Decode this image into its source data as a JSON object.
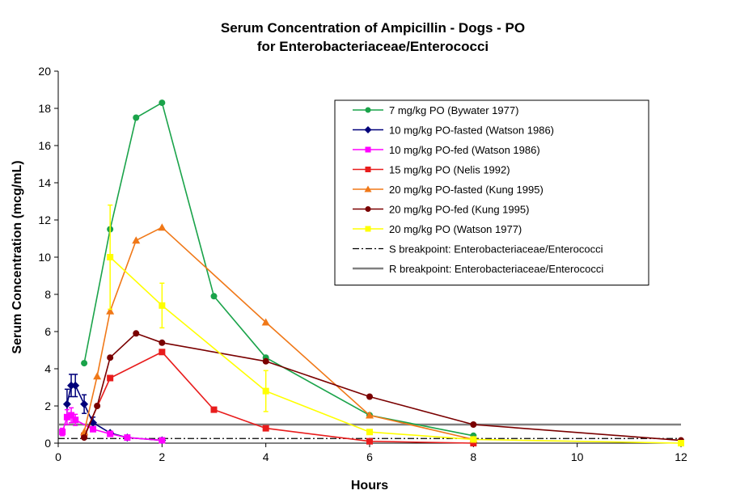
{
  "chart_data": {
    "type": "line",
    "title": [
      "Serum Concentration  of Ampicillin  - Dogs - PO",
      "for Enterobacteriaceae/Enterococci"
    ],
    "xlabel": "Hours",
    "ylabel": "Serum Concentration (mcg/mL)",
    "xlim": [
      0,
      12
    ],
    "ylim": [
      0,
      20
    ],
    "xticks": [
      0,
      2,
      4,
      6,
      8,
      10,
      12
    ],
    "yticks": [
      0,
      2,
      4,
      6,
      8,
      10,
      12,
      14,
      16,
      18,
      20
    ],
    "grid": false,
    "legend_position": "top-right",
    "series": [
      {
        "name": "7 mg/kg PO (Bywater 1977)",
        "color": "#1aa34a",
        "marker": "circle",
        "x": [
          0.5,
          1,
          1.5,
          2,
          3,
          4,
          6,
          8
        ],
        "y": [
          4.3,
          11.5,
          17.5,
          18.3,
          7.9,
          4.6,
          1.5,
          0.4
        ]
      },
      {
        "name": "10 mg/kg PO-fasted (Watson 1986)",
        "color": "#00007a",
        "marker": "diamond",
        "x": [
          0.17,
          0.25,
          0.33,
          0.5,
          0.67,
          1,
          1.33,
          2
        ],
        "y": [
          2.1,
          3.1,
          3.1,
          2.1,
          1.1,
          0.55,
          0.3,
          0.15
        ],
        "err": [
          0.8,
          0.6,
          0.6,
          0.5,
          0.3,
          0,
          0,
          0
        ]
      },
      {
        "name": "10 mg/kg PO-fed (Watson 1986)",
        "color": "#ff00ff",
        "marker": "square",
        "x": [
          0.08,
          0.17,
          0.25,
          0.33,
          0.67,
          1,
          1.33,
          2
        ],
        "y": [
          0.6,
          1.4,
          1.5,
          1.25,
          0.75,
          0.5,
          0.3,
          0.15
        ],
        "err": [
          0.2,
          0.4,
          0.4,
          0.3,
          0,
          0,
          0,
          0
        ]
      },
      {
        "name": "15 mg/kg PO (Nelis 1992)",
        "color": "#e81c1c",
        "marker": "square",
        "x": [
          0.5,
          1,
          2,
          3,
          4,
          6,
          8
        ],
        "y": [
          0.4,
          3.5,
          4.9,
          1.8,
          0.8,
          0.1,
          0.0
        ]
      },
      {
        "name": "20 mg/kg PO-fasted (Kung 1995)",
        "color": "#f07818",
        "marker": "triangle",
        "x": [
          0.5,
          0.75,
          1,
          1.5,
          2,
          4,
          6,
          8
        ],
        "y": [
          0.6,
          3.6,
          7.1,
          10.9,
          11.6,
          6.5,
          1.5,
          0.2
        ]
      },
      {
        "name": "20 mg/kg PO-fed (Kung 1995)",
        "color": "#7a0000",
        "marker": "circle",
        "x": [
          0.5,
          0.75,
          1,
          1.5,
          2,
          4,
          6,
          8,
          12
        ],
        "y": [
          0.3,
          2.0,
          4.6,
          5.9,
          5.4,
          4.4,
          2.5,
          1.0,
          0.15
        ]
      },
      {
        "name": "20 mg/kg PO (Watson 1977)",
        "color": "#ffff00",
        "marker": "square",
        "x": [
          1,
          2,
          4,
          6,
          8,
          12
        ],
        "y": [
          10.0,
          7.4,
          2.8,
          0.6,
          0.2,
          0.0
        ],
        "err": [
          2.8,
          1.2,
          1.1,
          0,
          0,
          0
        ]
      },
      {
        "name": "S breakpoint: Enterobacteriaceae/Enterococci",
        "color": "#000000",
        "style": "dash-dot",
        "x": [
          0,
          12
        ],
        "y": [
          0.25,
          0.25
        ]
      },
      {
        "name": "R breakpoint: Enterobacteriaceae/Enterococci",
        "color": "#808080",
        "style": "solid-thick",
        "x": [
          0,
          12
        ],
        "y": [
          1,
          1
        ]
      }
    ]
  }
}
